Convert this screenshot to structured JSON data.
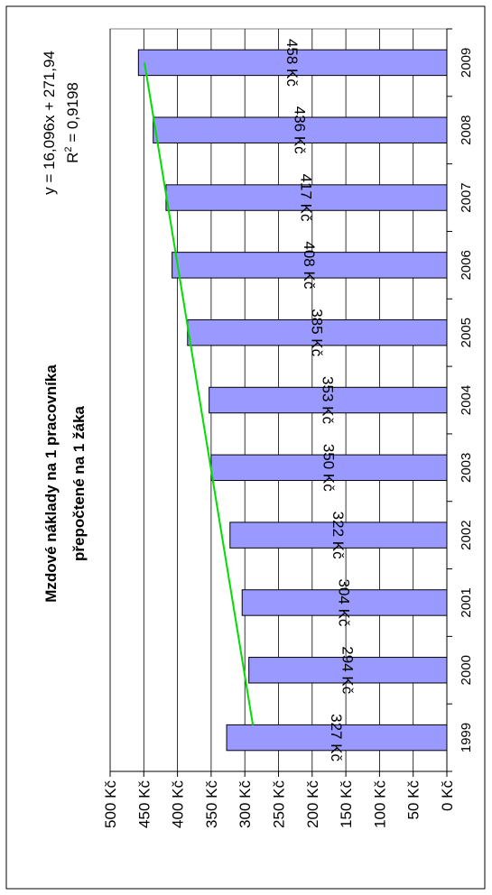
{
  "chart_data": {
    "type": "bar",
    "orientation": "rotated-90",
    "title_line1": "Mzdové náklady na 1 pracovníka",
    "title_line2": "přepočtené na 1 žáka",
    "categories": [
      "1999",
      "2000",
      "2001",
      "2002",
      "2003",
      "2004",
      "2005",
      "2006",
      "2007",
      "2008",
      "2009"
    ],
    "values": [
      327,
      294,
      304,
      322,
      350,
      353,
      385,
      408,
      417,
      436,
      458
    ],
    "data_labels": [
      "327 Kč",
      "294 Kč",
      "304 Kč",
      "322 Kč",
      "350 Kč",
      "353 Kč",
      "385 Kč",
      "408 Kč",
      "417 Kč",
      "436 Kč",
      "458 Kč"
    ],
    "value_ticks": [
      "0 Kč",
      "50 Kč",
      "100 Kč",
      "150 Kč",
      "200 Kč",
      "250 Kč",
      "300 Kč",
      "350 Kč",
      "400 Kč",
      "450 Kč",
      "500 Kč"
    ],
    "ylim": [
      0,
      500
    ],
    "grid": true,
    "trendline": {
      "type": "linear",
      "equation": "y = 16,096x + 271,94",
      "r2_prefix": "R",
      "r2_exp": "2",
      "r2_value": " = 0,9198",
      "slope": 16.096,
      "intercept": 271.94
    },
    "colors": {
      "bar_fill": "#9999ff",
      "bar_stroke": "#000000",
      "trendline": "#00dd00",
      "plot_background": "#ffffff",
      "grid": "#000000"
    }
  }
}
